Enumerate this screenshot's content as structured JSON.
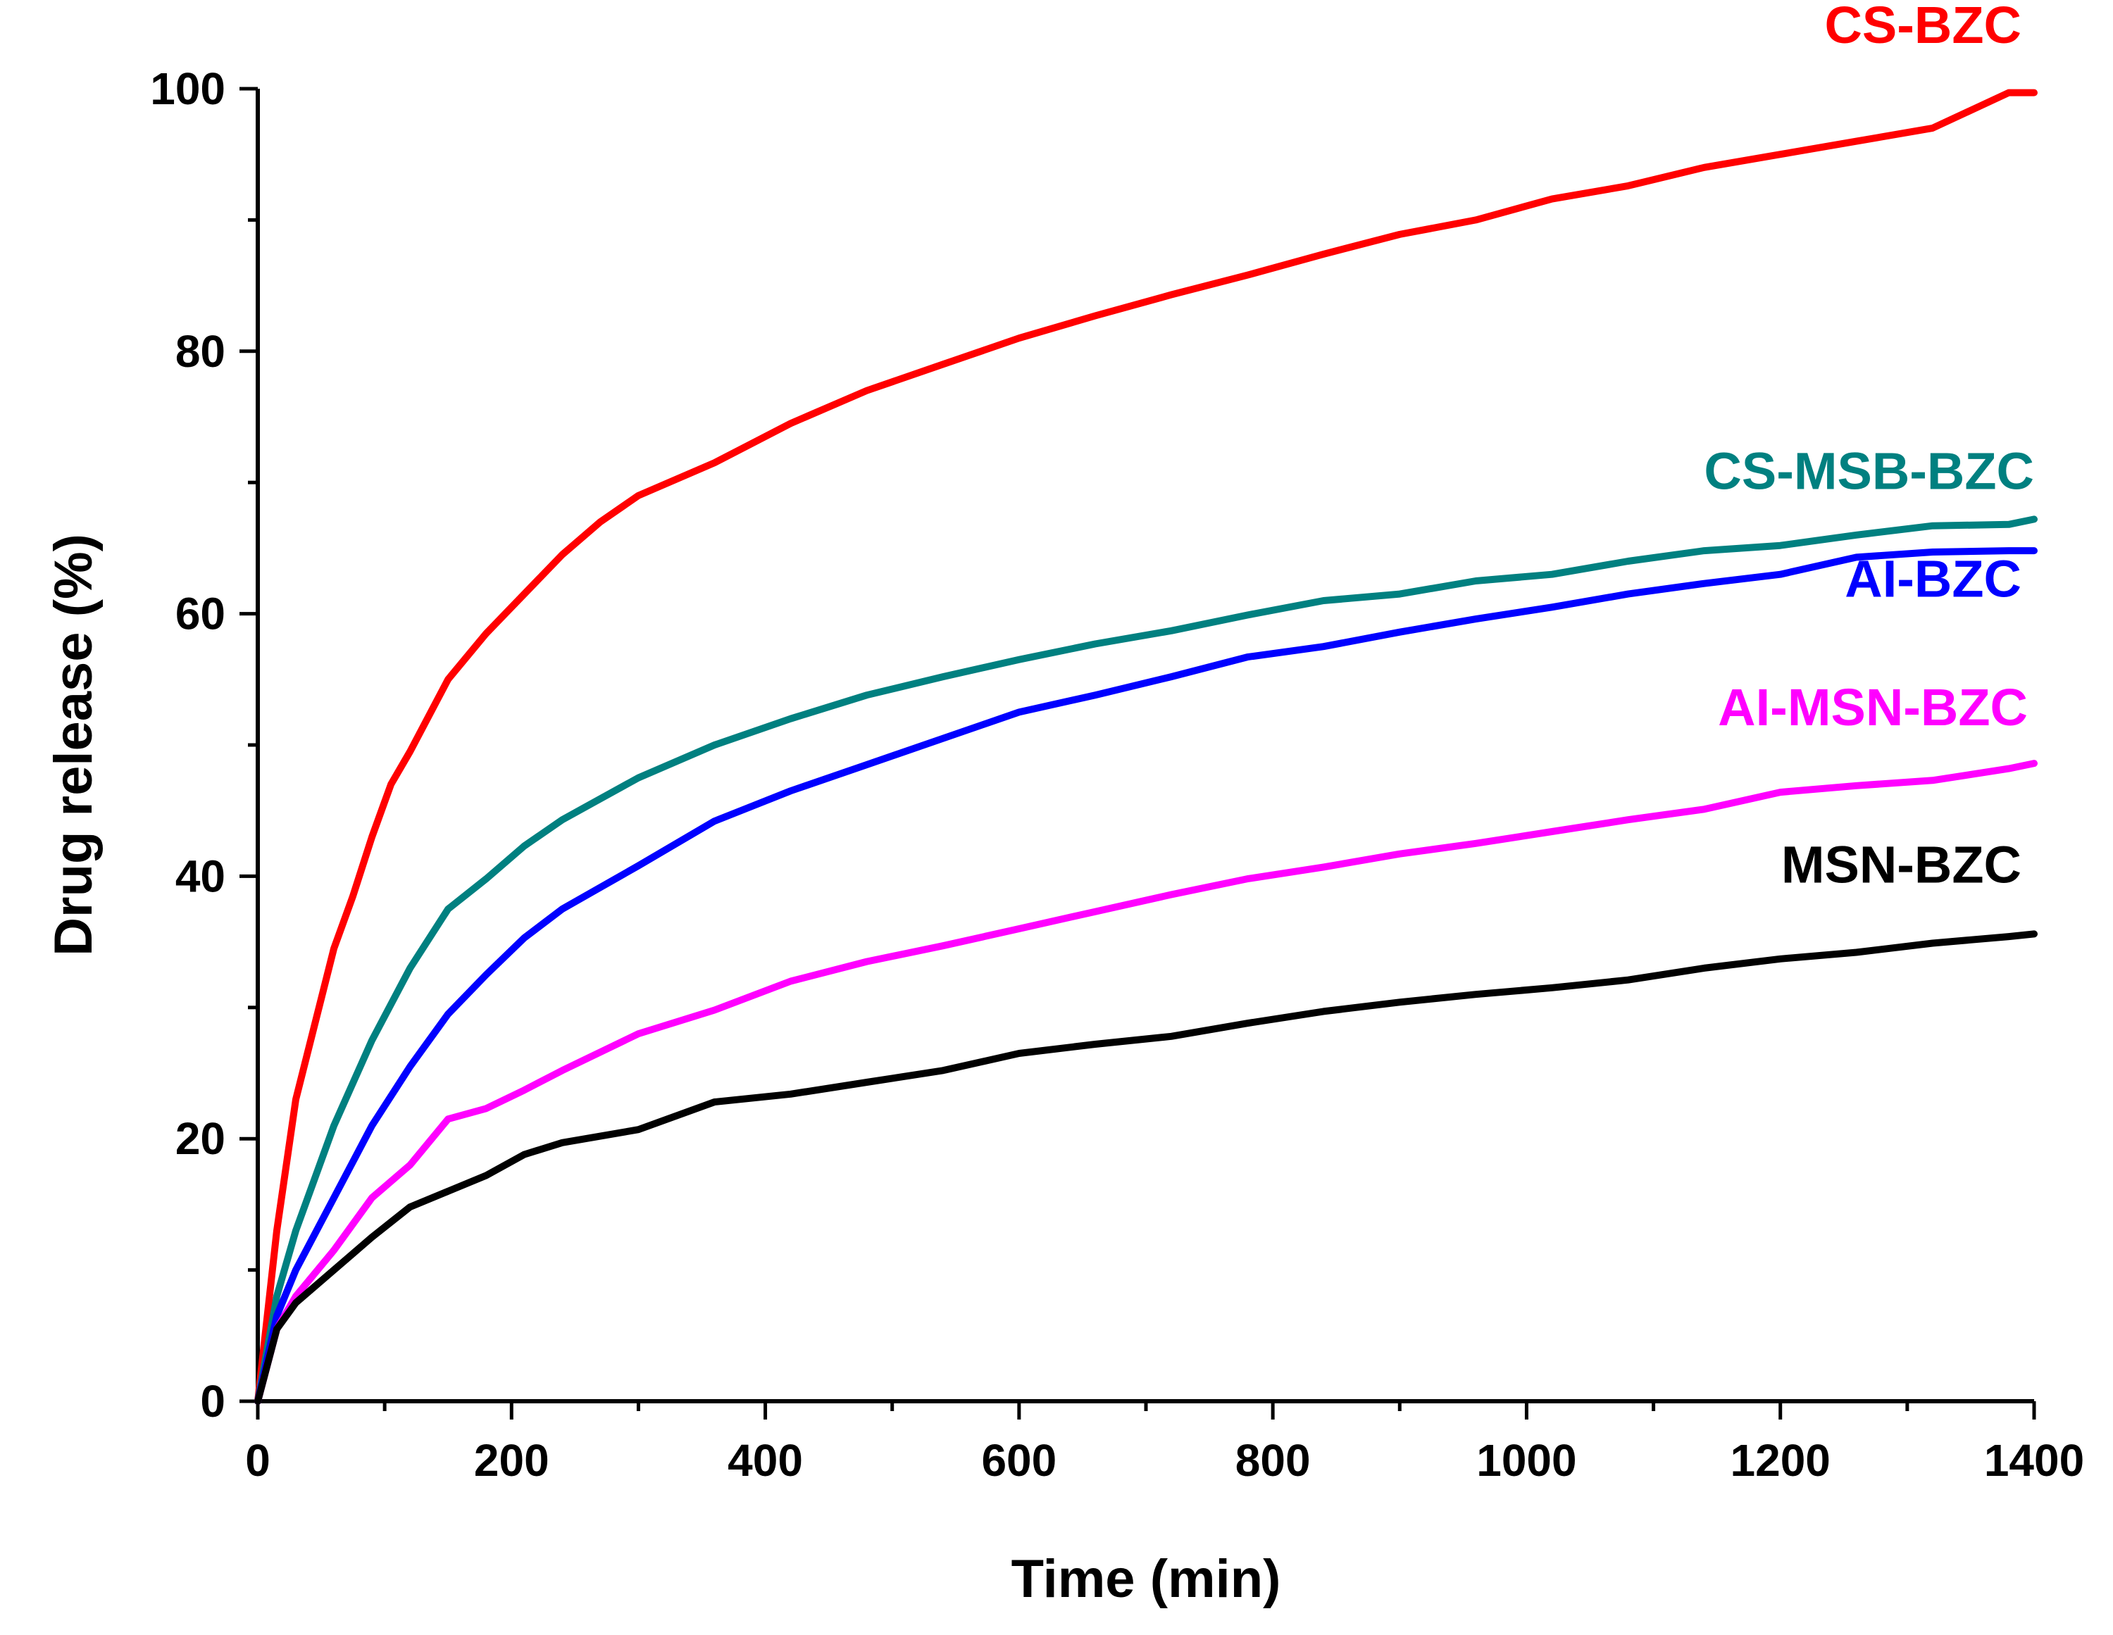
{
  "chart_data": {
    "type": "line",
    "title": "",
    "xlabel": "Time (min)",
    "ylabel": "Drug release (%)",
    "xlim": [
      0,
      1400
    ],
    "ylim": [
      0,
      100
    ],
    "xticks": [
      0,
      200,
      400,
      600,
      800,
      1000,
      1200,
      1400
    ],
    "yticks": [
      0,
      20,
      40,
      60,
      80,
      100
    ],
    "x_minor_step": 100,
    "y_minor_step": 10,
    "grid": false,
    "legend": "inline labels at right end of each curve",
    "series": [
      {
        "name": "CS-BZC",
        "color": "#ff0000",
        "label_anchor": [
          1390,
          103.5
        ],
        "x": [
          0,
          15,
          30,
          60,
          75,
          90,
          105,
          120,
          150,
          180,
          210,
          240,
          270,
          300,
          360,
          420,
          480,
          540,
          600,
          660,
          720,
          780,
          840,
          900,
          960,
          1020,
          1080,
          1140,
          1200,
          1260,
          1320,
          1380,
          1400
        ],
        "y": [
          0,
          13,
          23,
          34.5,
          38.5,
          43,
          47,
          49.5,
          55,
          58.5,
          61.5,
          64.5,
          67,
          69,
          71.5,
          74.5,
          77,
          79,
          81,
          82.7,
          84.3,
          85.8,
          87.4,
          88.9,
          90,
          91.6,
          92.6,
          94,
          95,
          96,
          97,
          99.7,
          99.7
        ]
      },
      {
        "name": "CS-MSB-BZC",
        "color": "#008080",
        "label_anchor": [
          1400,
          69.5
        ],
        "x": [
          0,
          15,
          30,
          60,
          90,
          120,
          150,
          180,
          210,
          240,
          300,
          360,
          420,
          480,
          540,
          600,
          660,
          720,
          780,
          840,
          900,
          960,
          1020,
          1080,
          1140,
          1200,
          1260,
          1320,
          1380,
          1400
        ],
        "y": [
          0,
          8,
          13,
          21,
          27.5,
          33,
          37.5,
          39.8,
          42.3,
          44.3,
          47.5,
          50,
          52,
          53.8,
          55.2,
          56.5,
          57.7,
          58.7,
          59.9,
          61,
          61.5,
          62.5,
          63,
          64,
          64.8,
          65.2,
          66,
          66.7,
          66.8,
          67.2
        ]
      },
      {
        "name": "AI-BZC",
        "color": "#0000ff",
        "label_anchor": [
          1390,
          61.3
        ],
        "x": [
          0,
          15,
          30,
          60,
          90,
          120,
          150,
          180,
          210,
          240,
          300,
          360,
          420,
          480,
          540,
          600,
          660,
          720,
          780,
          840,
          900,
          960,
          1020,
          1080,
          1140,
          1200,
          1260,
          1320,
          1380,
          1400
        ],
        "y": [
          0,
          6.5,
          10,
          15.5,
          21,
          25.5,
          29.5,
          32.5,
          35.3,
          37.5,
          40.8,
          44.2,
          46.5,
          48.5,
          50.5,
          52.5,
          53.8,
          55.2,
          56.7,
          57.5,
          58.6,
          59.6,
          60.5,
          61.5,
          62.3,
          63,
          64.3,
          64.7,
          64.8,
          64.8
        ]
      },
      {
        "name": "AI-MSN-BZC",
        "color": "#ff00ff",
        "label_anchor": [
          1395,
          51.5
        ],
        "x": [
          0,
          15,
          30,
          60,
          90,
          120,
          150,
          180,
          210,
          240,
          300,
          360,
          420,
          480,
          540,
          600,
          660,
          720,
          780,
          840,
          900,
          960,
          1020,
          1080,
          1140,
          1200,
          1260,
          1320,
          1380,
          1400
        ],
        "y": [
          0,
          5.5,
          8,
          11.5,
          15.5,
          18,
          21.5,
          22.3,
          23.7,
          25.2,
          28,
          29.8,
          32,
          33.5,
          34.7,
          36,
          37.3,
          38.6,
          39.8,
          40.7,
          41.7,
          42.5,
          43.4,
          44.3,
          45.1,
          46.4,
          46.9,
          47.3,
          48.2,
          48.6
        ]
      },
      {
        "name": "MSN-BZC",
        "color": "#000000",
        "label_anchor": [
          1390,
          39.5
        ],
        "x": [
          0,
          15,
          30,
          60,
          90,
          120,
          150,
          180,
          210,
          240,
          300,
          360,
          420,
          480,
          540,
          600,
          660,
          720,
          780,
          840,
          900,
          960,
          1020,
          1080,
          1140,
          1200,
          1260,
          1320,
          1380,
          1400
        ],
        "y": [
          0,
          5.5,
          7.5,
          10,
          12.5,
          14.8,
          16,
          17.2,
          18.8,
          19.7,
          20.7,
          22.8,
          23.4,
          24.3,
          25.2,
          26.5,
          27.2,
          27.8,
          28.8,
          29.7,
          30.4,
          31,
          31.5,
          32.1,
          33,
          33.7,
          34.2,
          34.9,
          35.4,
          35.6
        ]
      }
    ]
  }
}
